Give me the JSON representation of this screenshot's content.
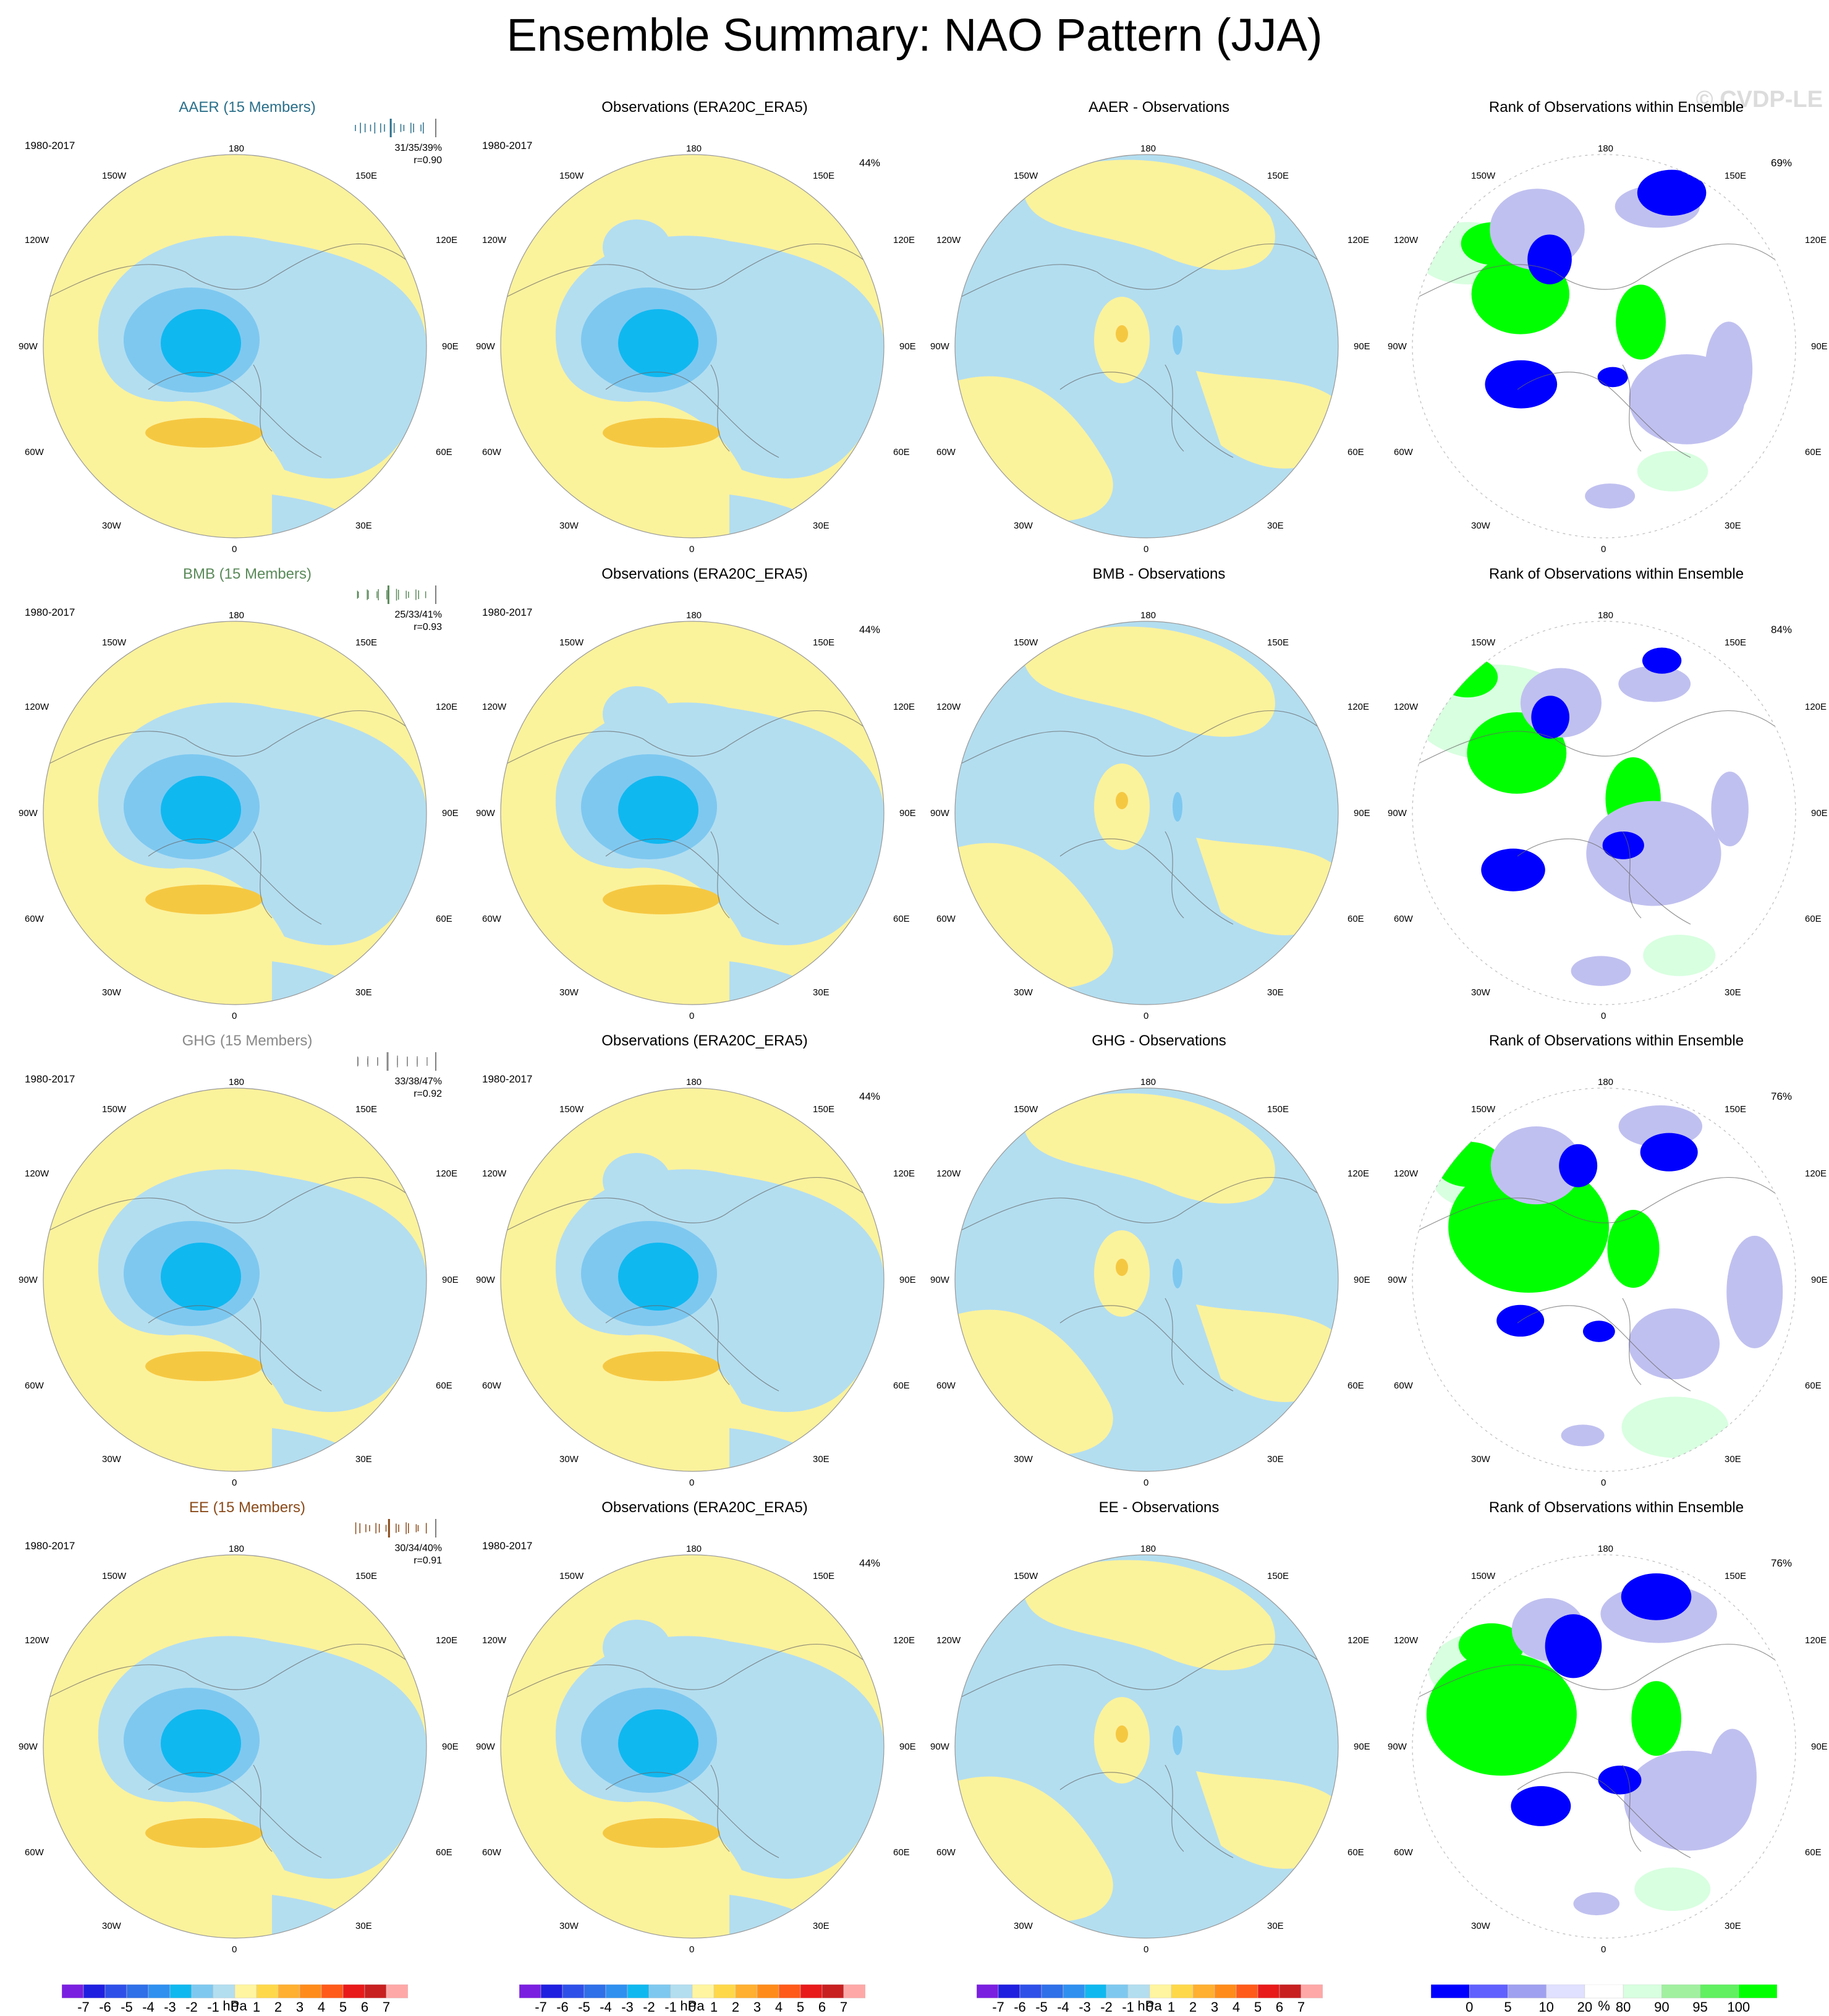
{
  "title": "Ensemble Summary: NAO Pattern (JJA)",
  "watermark": "© CVDP-LE",
  "lon_labels": {
    "top": "180",
    "bottom": "0",
    "tl": "150W",
    "tr": "150E",
    "ul": "120W",
    "ur": "120E",
    "ml": "90W",
    "mr": "90E",
    "ll": "60W",
    "lr": "60E",
    "bl": "30W",
    "br": "30E"
  },
  "rows": [
    {
      "ensemble": {
        "title": "AAER (15 Members)",
        "color": "#2a6f8a",
        "period": "1980-2017",
        "stats": "31/35/39%",
        "r": "r=0.90"
      },
      "observations": {
        "title": "Observations (ERA20C_ERA5)",
        "period": "1980-2017",
        "pct": "44%"
      },
      "difference": {
        "title": "AAER - Observations"
      },
      "rank": {
        "title": "Rank of Observations within Ensemble",
        "pct": "69%"
      }
    },
    {
      "ensemble": {
        "title": "BMB (15 Members)",
        "color": "#5a8a5a",
        "period": "1980-2017",
        "stats": "25/33/41%",
        "r": "r=0.93"
      },
      "observations": {
        "title": "Observations (ERA20C_ERA5)",
        "period": "1980-2017",
        "pct": "44%"
      },
      "difference": {
        "title": "BMB - Observations"
      },
      "rank": {
        "title": "Rank of Observations within Ensemble",
        "pct": "84%"
      }
    },
    {
      "ensemble": {
        "title": "GHG (15 Members)",
        "color": "#888888",
        "period": "1980-2017",
        "stats": "33/38/47%",
        "r": "r=0.92"
      },
      "observations": {
        "title": "Observations (ERA20C_ERA5)",
        "period": "1980-2017",
        "pct": "44%"
      },
      "difference": {
        "title": "GHG - Observations"
      },
      "rank": {
        "title": "Rank of Observations within Ensemble",
        "pct": "76%"
      }
    },
    {
      "ensemble": {
        "title": "EE (15 Members)",
        "color": "#8a4a1a",
        "period": "1980-2017",
        "stats": "30/34/40%",
        "r": "r=0.91"
      },
      "observations": {
        "title": "Observations (ERA20C_ERA5)",
        "period": "1980-2017",
        "pct": "44%"
      },
      "difference": {
        "title": "EE - Observations"
      },
      "rank": {
        "title": "Rank of Observations within Ensemble",
        "pct": "76%"
      }
    }
  ],
  "colorbar_hpa": {
    "labels": [
      "-7",
      "-6",
      "-5",
      "-4",
      "-3",
      "-2",
      "-1",
      "0",
      "1",
      "2",
      "3",
      "4",
      "5",
      "6",
      "7"
    ],
    "colors": [
      "#7a1fe0",
      "#1f1fe0",
      "#2e50e8",
      "#2f6fe8",
      "#2f90f0",
      "#10b8f0",
      "#7ec8f0",
      "#b3def0",
      "#fff5a0",
      "#ffd84a",
      "#ffb030",
      "#ff8c1a",
      "#ff5a1a",
      "#e81a1a",
      "#c82020",
      "#ffa8a8"
    ],
    "unit": "hPa"
  },
  "colorbar_rank": {
    "labels": [
      "0",
      "5",
      "10",
      "20",
      "80",
      "90",
      "95",
      "100"
    ],
    "colors": [
      "#0000ff",
      "#6060ff",
      "#a0a0f0",
      "#e0e0ff",
      "#ffffff",
      "#d8ffe0",
      "#a0f0a0",
      "#60f060",
      "#00ff00"
    ],
    "unit": "%"
  },
  "colors": {
    "land_bg": "#fbf29c",
    "sea_blue": "#b3def0",
    "blue_mid": "#7ec8f0",
    "blue_deep": "#10b8f0",
    "orange": "#f5c842",
    "rank_green": "#00ff00",
    "rank_blue": "#0000ff",
    "rank_lav": "#c0c0f0",
    "rank_lightgreen": "#d8ffe0"
  }
}
